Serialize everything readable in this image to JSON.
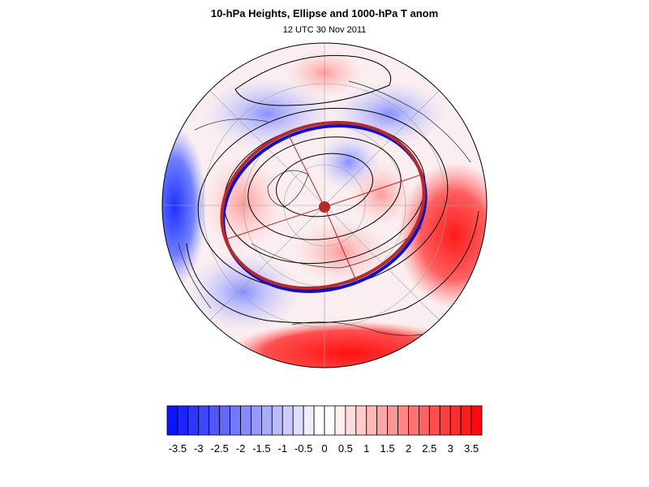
{
  "title": "10-hPa Heights, Ellipse and 1000-hPa T anom",
  "subtitle": "12 UTC 30 Nov 2011",
  "colors": {
    "ellipse": "#b52a2a",
    "ellipse_shadow": "#1010c0",
    "contour": "#000000",
    "cold_max": "#0a14ff",
    "warm_max": "#ff0a0a"
  },
  "colorbar": {
    "ticks": [
      "-3.5",
      "-3",
      "-2.5",
      "-2",
      "-1.5",
      "-1",
      "-0.5",
      "0",
      "0.5",
      "1",
      "1.5",
      "2",
      "2.5",
      "3",
      "3.5"
    ],
    "min": -3.75,
    "max": 3.75,
    "step": 0.25
  }
}
